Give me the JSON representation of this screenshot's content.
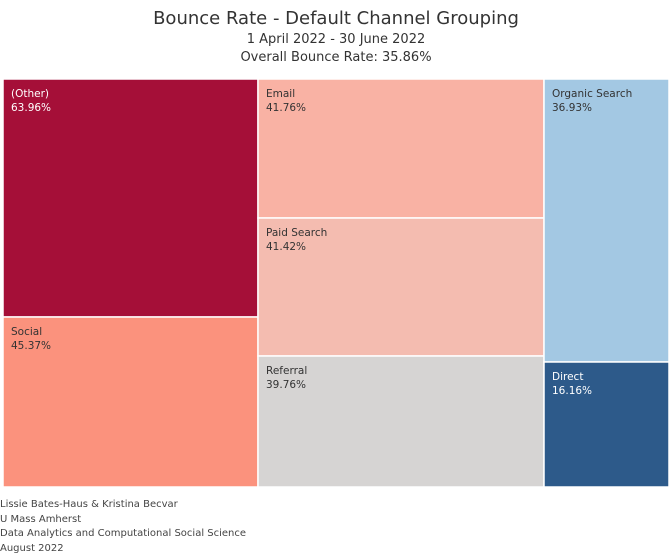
{
  "header": {
    "title": "Bounce Rate - Default Channel Grouping",
    "date_range": "1 April 2022 - 30 June 2022",
    "overall": "Overall Bounce Rate: 35.86%"
  },
  "chart_data": {
    "type": "treemap",
    "title": "Bounce Rate - Default Channel Grouping",
    "subtitle": "1 April 2022 - 30 June 2022",
    "metric": "Bounce Rate",
    "tiles": [
      {
        "name": "(Other)",
        "label": "63.96%",
        "value": 63.96,
        "color": "#a50f38",
        "text_color": "#ffffff"
      },
      {
        "name": "Social",
        "label": "45.37%",
        "value": 45.37,
        "color": "#fb927d",
        "text_color": "#333333"
      },
      {
        "name": "Email",
        "label": "41.76%",
        "value": 41.76,
        "color": "#f9b2a4",
        "text_color": "#333333"
      },
      {
        "name": "Paid Search",
        "label": "41.42%",
        "value": 41.42,
        "color": "#f4bcb0",
        "text_color": "#333333"
      },
      {
        "name": "Referral",
        "label": "39.76%",
        "value": 39.76,
        "color": "#d6d4d3",
        "text_color": "#333333"
      },
      {
        "name": "Organic Search",
        "label": "36.93%",
        "value": 36.93,
        "color": "#a3c8e3",
        "text_color": "#333333"
      },
      {
        "name": "Direct",
        "label": "16.16%",
        "value": 16.16,
        "color": "#2d5a8a",
        "text_color": "#ffffff"
      }
    ]
  },
  "footer": {
    "lines": [
      "Lissie Bates-Haus & Kristina Becvar",
      "U Mass Amherst",
      "Data Analytics and Computational Social Science",
      "August 2022"
    ]
  }
}
